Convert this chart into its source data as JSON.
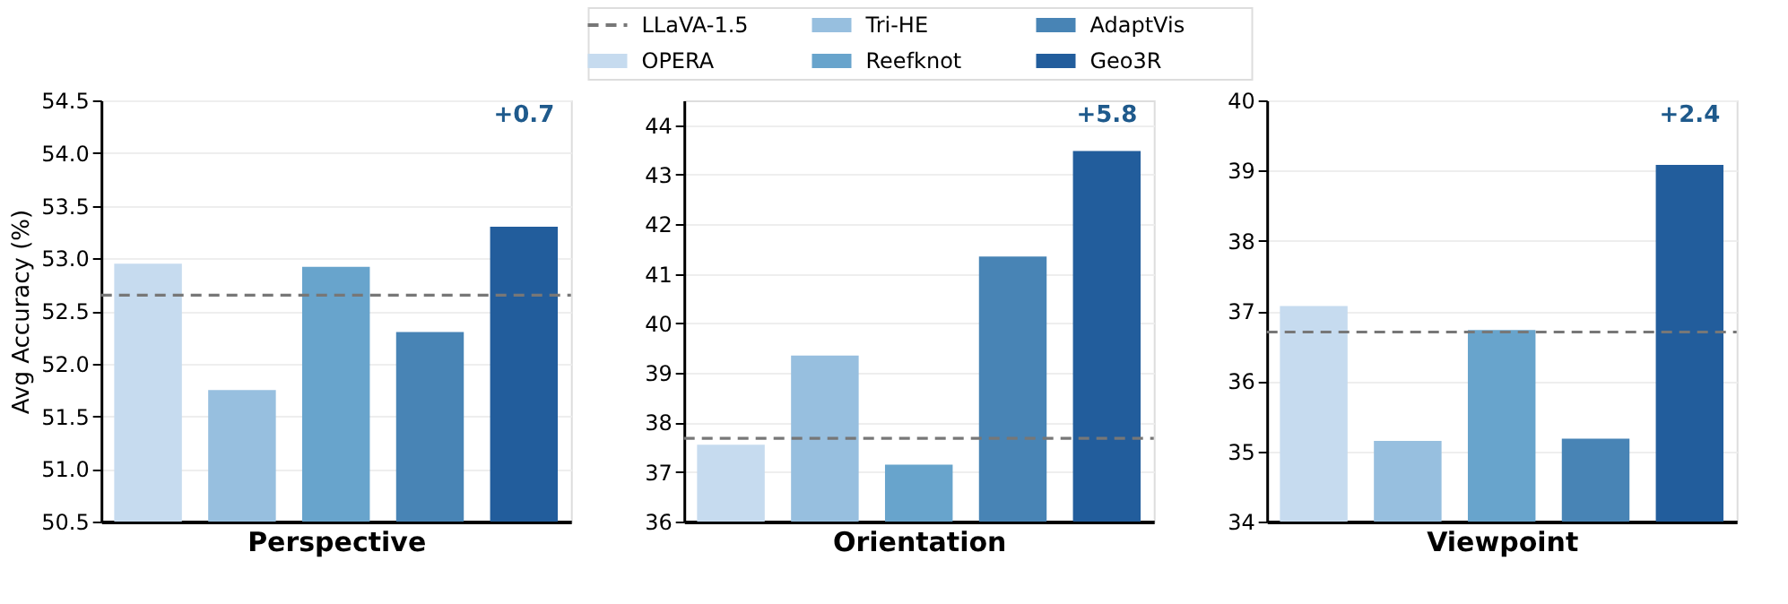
{
  "chart_data": [
    {
      "type": "bar",
      "xlabel": "Perspective",
      "ylabel": "Avg Accuracy (%)",
      "categories": [
        null
      ],
      "legend": "top",
      "grid": "y",
      "ylim": [
        50.5,
        54.5
      ],
      "yticks": [
        {
          "value": 50.5,
          "label": "50.5"
        },
        {
          "value": 51,
          "label": "51.0"
        },
        {
          "value": 51.5,
          "label": "51.5"
        },
        {
          "value": 52,
          "label": "52.0"
        },
        {
          "value": 52.5,
          "label": "52.5"
        },
        {
          "value": 53,
          "label": "53.0"
        },
        {
          "value": 53.5,
          "label": "53.5"
        },
        {
          "value": 54,
          "label": "54.0"
        },
        {
          "value": 54.5,
          "label": "54.5"
        }
      ],
      "series": [
        {
          "name": "OPERA",
          "color": "#c6dbef",
          "values": [
            52.95
          ]
        },
        {
          "name": "Tri-HE",
          "color": "#97bfdf",
          "values": [
            51.75
          ]
        },
        {
          "name": "Reefknot",
          "color": "#68a4cc",
          "values": [
            52.92
          ]
        },
        {
          "name": "AdaptVis",
          "color": "#4884b5",
          "values": [
            52.3
          ]
        },
        {
          "name": "Geo3R",
          "color": "#225d9c",
          "values": [
            53.3
          ]
        }
      ],
      "ref_lines": [
        {
          "axis": "y",
          "value": 52.65,
          "label": "LLaVA-1.5",
          "color": "#777777",
          "line_style": "dashed"
        }
      ],
      "annotations": [
        "+0.7"
      ]
    },
    {
      "type": "bar",
      "xlabel": "Orientation",
      "categories": [
        null
      ],
      "grid": "y",
      "ylim": [
        36,
        44.5
      ],
      "yticks": [
        36,
        37,
        38,
        39,
        40,
        41,
        42,
        43,
        44
      ],
      "series": [
        {
          "color": "#c6dbef",
          "values": [
            37.55
          ]
        },
        {
          "color": "#97bfdf",
          "values": [
            39.35
          ]
        },
        {
          "color": "#68a4cc",
          "values": [
            37.15
          ]
        },
        {
          "color": "#4884b5",
          "values": [
            41.35
          ]
        },
        {
          "color": "#225d9c",
          "values": [
            43.48
          ]
        }
      ],
      "ref_lines": [
        {
          "axis": "y",
          "value": 37.68,
          "color": "#777777",
          "line_style": "dashed"
        }
      ],
      "annotations": [
        "+5.8"
      ]
    },
    {
      "type": "bar",
      "xlabel": "Viewpoint",
      "categories": [
        null
      ],
      "grid": "y",
      "ylim": [
        34,
        40
      ],
      "yticks": [
        34,
        35,
        36,
        37,
        38,
        39,
        40
      ],
      "series": [
        {
          "color": "#c6dbef",
          "values": [
            37.07
          ]
        },
        {
          "color": "#97bfdf",
          "values": [
            35.15
          ]
        },
        {
          "color": "#68a4cc",
          "values": [
            36.73
          ]
        },
        {
          "color": "#4884b5",
          "values": [
            35.18
          ]
        },
        {
          "color": "#225d9c",
          "values": [
            39.08
          ]
        }
      ],
      "ref_lines": [
        {
          "axis": "y",
          "value": 36.7,
          "color": "#777777",
          "line_style": "dashed"
        }
      ],
      "annotations": [
        "+2.4"
      ]
    }
  ]
}
